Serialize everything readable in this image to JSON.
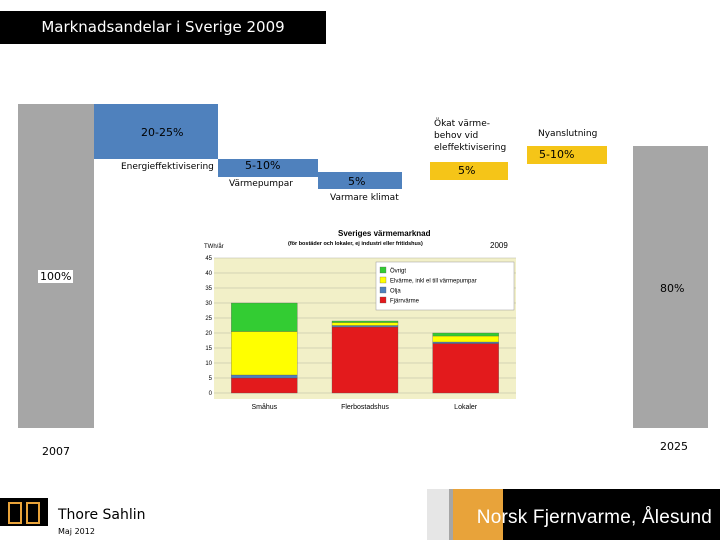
{
  "header": {
    "title": "Marknadsandelar i Sverige 2009"
  },
  "waterfall": {
    "start_label": "100%",
    "start_year": "2007",
    "end_label": "80%",
    "end_year": "2025",
    "steps": [
      {
        "name": "Energieffektivisering",
        "value": "20-25%",
        "color": "#4f81bd"
      },
      {
        "name": "Värmepumpar",
        "value": "5-10%",
        "color": "#4f81bd"
      },
      {
        "name": "Varmare klimat",
        "value": "5%",
        "color": "#4f81bd"
      },
      {
        "name": "Ökat värme-behov vid eleffektivisering",
        "value": "5%",
        "color": "#f5c518"
      },
      {
        "name": "Nyanslutning",
        "value": "5-10%",
        "color": "#f5c518"
      }
    ]
  },
  "chart_data": {
    "type": "bar",
    "stacked": true,
    "title": "Sveriges värmemarknad",
    "subtitle": "(för bostäder och lokaler, ej industri eller fritidshus)",
    "year": "2009",
    "ylabel": "TWh/år",
    "ylim": [
      0,
      45
    ],
    "yticks": [
      0,
      5,
      10,
      15,
      20,
      25,
      30,
      35,
      40,
      45
    ],
    "categories": [
      "Småhus",
      "Flerbostadshus",
      "Lokaler"
    ],
    "grid": true,
    "legend_position": "top-right",
    "series": [
      {
        "name": "Fjärrvärme",
        "color": "#e31a1c",
        "values": [
          5,
          22,
          16.5
        ]
      },
      {
        "name": "Olja",
        "color": "#4f81bd",
        "values": [
          1,
          0.5,
          0.5
        ]
      },
      {
        "name": "Elvärme, inkl el till värmepumpar",
        "color": "#ffff00",
        "values": [
          14.5,
          1,
          2
        ]
      },
      {
        "name": "Övrigt",
        "color": "#33cc33",
        "values": [
          9.5,
          0.5,
          1
        ]
      }
    ],
    "legend_order": [
      "Övrigt",
      "Elvärme, inkl el till värmepumpar",
      "Olja",
      "Fjärrvärme"
    ]
  },
  "footer": {
    "author": "Thore Sahlin",
    "date": "Maj 2012",
    "logo_text": "PP",
    "banner_text": "Norsk Fjernvarme, Ålesund"
  }
}
